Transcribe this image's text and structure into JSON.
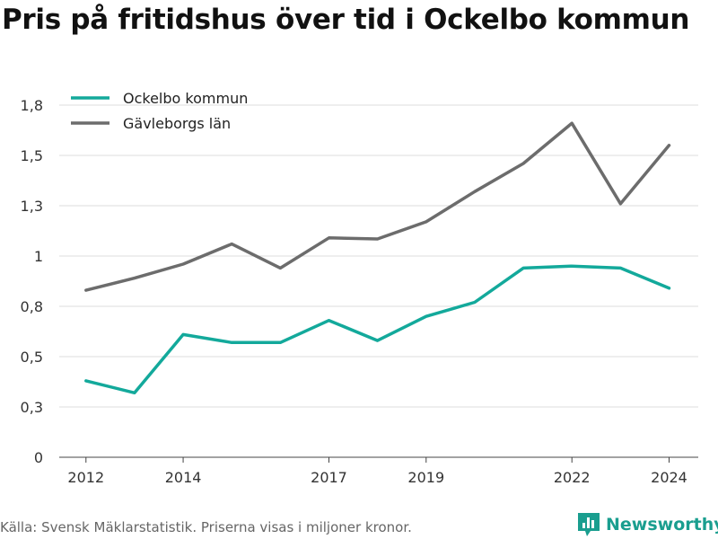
{
  "title": "Pris på fritidshus över tid i Ockelbo kommun",
  "source": "Källa: Svensk Mäklarstatistik. Priserna visas i miljoner kronor.",
  "brand": "Newsworthy",
  "colors": {
    "ockelbo": "#13a99b",
    "lan": "#6c6c6c",
    "brand": "#1a9e8f"
  },
  "chart_data": {
    "type": "line",
    "x": [
      2012,
      2013,
      2014,
      2015,
      2016,
      2017,
      2018,
      2019,
      2020,
      2021,
      2022,
      2023,
      2024
    ],
    "x_ticks": [
      2012,
      2014,
      2017,
      2019,
      2022,
      2024
    ],
    "x_tick_labels": [
      "2012",
      "2014",
      "2017",
      "2019",
      "2022",
      "2024"
    ],
    "y_ticks": [
      0,
      0.25,
      0.5,
      0.75,
      1.0,
      1.25,
      1.5,
      1.75
    ],
    "y_tick_labels": [
      "0",
      "0,3",
      "0,5",
      "0,8",
      "1",
      "1,3",
      "1,5",
      "1,8"
    ],
    "ylim": [
      0,
      1.75
    ],
    "xlim": [
      2011.45,
      2024.6
    ],
    "grid": true,
    "legend_position": "top-left",
    "series": [
      {
        "name": "Ockelbo kommun",
        "color_key": "ockelbo",
        "values": [
          0.38,
          0.32,
          0.61,
          0.57,
          0.57,
          0.68,
          0.58,
          0.7,
          0.77,
          0.94,
          0.95,
          0.94,
          0.84
        ]
      },
      {
        "name": "Gävleborgs län",
        "color_key": "lan",
        "values": [
          0.83,
          0.89,
          0.96,
          1.06,
          0.94,
          1.09,
          1.085,
          1.17,
          1.32,
          1.46,
          1.66,
          1.26,
          1.55
        ]
      }
    ]
  }
}
